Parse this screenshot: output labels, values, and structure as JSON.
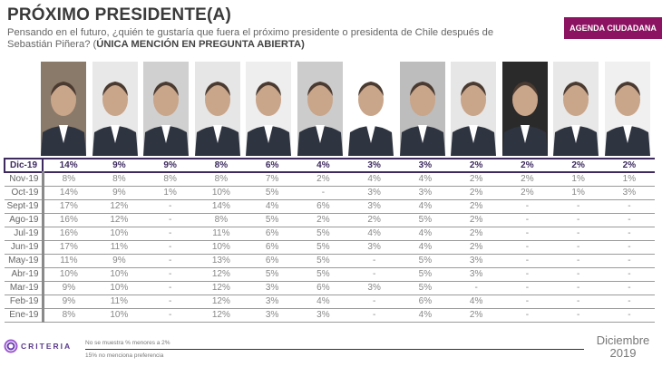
{
  "header": {
    "title": "PRÓXIMO PRESIDENTE(A)",
    "question": "Pensando en el futuro, ¿quién te gustaría que fuera el próximo presidente o presidenta de Chile después de Sebastián Piñera? (",
    "question_emph": "ÚNICA MENCIÓN EN PREGUNTA ABIERTA)",
    "badge": "AGENDA CIUDADANA"
  },
  "colors": {
    "badge": "#8b1361",
    "current_row": "#3d2a5e"
  },
  "candidates_photo_bg": [
    "#8a7a6a",
    "#e8e8e8",
    "#d0d0d0",
    "#e6e6e6",
    "#eeeeee",
    "#cccccc",
    "#ffffff",
    "#bdbdbd",
    "#e6e6e6",
    "#2a2a2a",
    "#e8e8e8",
    "#f0f0f0"
  ],
  "table": {
    "rows": [
      {
        "label": "Dic-19",
        "values": [
          "14%",
          "9%",
          "9%",
          "8%",
          "6%",
          "4%",
          "3%",
          "3%",
          "2%",
          "2%",
          "2%",
          "2%"
        ]
      },
      {
        "label": "Nov-19",
        "values": [
          "8%",
          "8%",
          "8%",
          "8%",
          "7%",
          "2%",
          "4%",
          "4%",
          "2%",
          "2%",
          "1%",
          "1%"
        ]
      },
      {
        "label": "Oct-19",
        "values": [
          "14%",
          "9%",
          "1%",
          "10%",
          "5%",
          "-",
          "3%",
          "3%",
          "2%",
          "2%",
          "1%",
          "3%"
        ]
      },
      {
        "label": "Sept-19",
        "values": [
          "17%",
          "12%",
          "-",
          "14%",
          "4%",
          "6%",
          "3%",
          "4%",
          "2%",
          "-",
          "-",
          "-"
        ]
      },
      {
        "label": "Ago-19",
        "values": [
          "16%",
          "12%",
          "-",
          "8%",
          "5%",
          "2%",
          "2%",
          "5%",
          "2%",
          "-",
          "-",
          "-"
        ]
      },
      {
        "label": "Jul-19",
        "values": [
          "16%",
          "10%",
          "-",
          "11%",
          "6%",
          "5%",
          "4%",
          "4%",
          "2%",
          "-",
          "-",
          "-"
        ]
      },
      {
        "label": "Jun-19",
        "values": [
          "17%",
          "11%",
          "-",
          "10%",
          "6%",
          "5%",
          "3%",
          "4%",
          "2%",
          "-",
          "-",
          "-"
        ]
      },
      {
        "label": "May-19",
        "values": [
          "11%",
          "9%",
          "-",
          "13%",
          "6%",
          "5%",
          "-",
          "5%",
          "3%",
          "-",
          "-",
          "-"
        ]
      },
      {
        "label": "Abr-19",
        "values": [
          "10%",
          "10%",
          "-",
          "12%",
          "5%",
          "5%",
          "-",
          "5%",
          "3%",
          "-",
          "-",
          "-"
        ]
      },
      {
        "label": "Mar-19",
        "values": [
          "9%",
          "10%",
          "-",
          "12%",
          "3%",
          "6%",
          "3%",
          "5%",
          "-",
          "-",
          "-",
          "-"
        ]
      },
      {
        "label": "Feb-19",
        "values": [
          "9%",
          "11%",
          "-",
          "12%",
          "3%",
          "4%",
          "-",
          "6%",
          "4%",
          "-",
          "-",
          "-"
        ]
      },
      {
        "label": "Ene-19",
        "values": [
          "8%",
          "10%",
          "-",
          "12%",
          "3%",
          "3%",
          "-",
          "4%",
          "2%",
          "-",
          "-",
          "-"
        ]
      }
    ]
  },
  "footer": {
    "logo": "CRITERIA",
    "note1": "No se muestra % menores a 2%",
    "note2": "15% no menciona preferencia",
    "date_month": "Diciembre",
    "date_year": "2019"
  }
}
